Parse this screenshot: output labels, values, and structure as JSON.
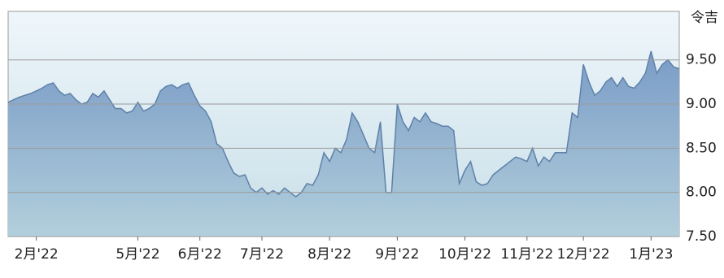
{
  "chart_data": {
    "type": "area",
    "title": "令吉",
    "values": [
      9.02,
      9.05,
      9.08,
      9.1,
      9.12,
      9.15,
      9.18,
      9.22,
      9.24,
      9.15,
      9.1,
      9.12,
      9.05,
      9.0,
      9.02,
      9.12,
      9.08,
      9.15,
      9.05,
      8.95,
      8.95,
      8.9,
      8.92,
      9.02,
      8.92,
      8.95,
      9.0,
      9.15,
      9.2,
      9.22,
      9.18,
      9.22,
      9.24,
      9.1,
      8.98,
      8.92,
      8.8,
      8.55,
      8.5,
      8.35,
      8.22,
      8.18,
      8.2,
      8.05,
      8.0,
      8.05,
      7.98,
      8.02,
      7.98,
      8.05,
      8.0,
      7.95,
      8.0,
      8.1,
      8.08,
      8.2,
      8.45,
      8.35,
      8.5,
      8.45,
      8.6,
      8.9,
      8.8,
      8.65,
      8.5,
      8.45,
      8.8,
      8.0,
      8.0,
      9.0,
      8.8,
      8.7,
      8.85,
      8.8,
      8.9,
      8.8,
      8.78,
      8.75,
      8.75,
      8.7,
      8.1,
      8.25,
      8.35,
      8.12,
      8.08,
      8.1,
      8.2,
      8.25,
      8.3,
      8.35,
      8.4,
      8.38,
      8.35,
      8.5,
      8.3,
      8.4,
      8.35,
      8.45,
      8.45,
      8.45,
      8.9,
      8.85,
      9.45,
      9.25,
      9.1,
      9.15,
      9.25,
      9.3,
      9.2,
      9.3,
      9.2,
      9.18,
      9.25,
      9.35,
      9.6,
      9.35,
      9.45,
      9.5,
      9.42,
      9.4
    ],
    "color": "#5f80a8",
    "xlim": [
      0,
      119
    ],
    "xticks": [
      {
        "value": 5,
        "label": "2月'22"
      },
      {
        "value": 23,
        "label": "5月'22"
      },
      {
        "value": 34,
        "label": "6月'22"
      },
      {
        "value": 45,
        "label": "7月'22"
      },
      {
        "value": 57,
        "label": "8月'22"
      },
      {
        "value": 69,
        "label": "9月'22"
      },
      {
        "value": 81,
        "label": "10月'22"
      },
      {
        "value": 92,
        "label": "11月'22"
      },
      {
        "value": 102,
        "label": "12月'22"
      },
      {
        "value": 114,
        "label": "1月'23"
      }
    ],
    "ylim": [
      7.5,
      10.05
    ],
    "yticks": [
      {
        "value": 7.5,
        "label": "7.50"
      },
      {
        "value": 8,
        "label": "8.00"
      },
      {
        "value": 8.5,
        "label": "8.50"
      },
      {
        "value": 9,
        "label": "9.00"
      },
      {
        "value": 9.5,
        "label": "9.50"
      }
    ],
    "grid": true
  }
}
